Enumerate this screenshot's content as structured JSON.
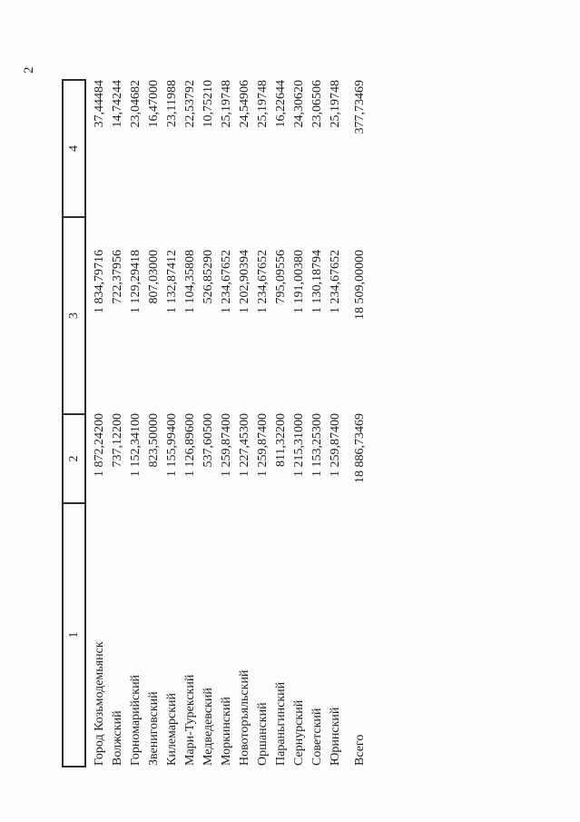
{
  "page": {
    "number": "2"
  },
  "table": {
    "columns": [
      "1",
      "2",
      "3",
      "4"
    ],
    "rows": [
      {
        "name": "Город Козьмодемьянск",
        "c2": "1 872,24200",
        "c3": "1 834,79716",
        "c4": "37,44484"
      },
      {
        "name": "Волжский",
        "c2": "737,12200",
        "c3": "722,37956",
        "c4": "14,74244"
      },
      {
        "name": "Горномарийский",
        "c2": "1 152,34100",
        "c3": "1 129,29418",
        "c4": "23,04682"
      },
      {
        "name": "Звениговский",
        "c2": "823,50000",
        "c3": "807,03000",
        "c4": "16,47000"
      },
      {
        "name": "Килемарский",
        "c2": "1 155,99400",
        "c3": "1 132,87412",
        "c4": "23,11988"
      },
      {
        "name": "Мари-Турекский",
        "c2": "1 126,89600",
        "c3": "1 104,35808",
        "c4": "22,53792"
      },
      {
        "name": "Медведевский",
        "c2": "537,60500",
        "c3": "526,85290",
        "c4": "10,75210"
      },
      {
        "name": "Моркинский",
        "c2": "1 259,87400",
        "c3": "1 234,67652",
        "c4": "25,19748"
      },
      {
        "name": "Новоторъяльский",
        "c2": "1 227,45300",
        "c3": "1 202,90394",
        "c4": "24,54906"
      },
      {
        "name": "Оршанский",
        "c2": "1 259,87400",
        "c3": "1 234,67652",
        "c4": "25,19748"
      },
      {
        "name": "Параньгинский",
        "c2": "811,32200",
        "c3": "795,09556",
        "c4": "16,22644"
      },
      {
        "name": "Сернурский",
        "c2": "1 215,31000",
        "c3": "1 191,00380",
        "c4": "24,30620"
      },
      {
        "name": "Советский",
        "c2": "1 153,25300",
        "c3": "1 130,18794",
        "c4": "23,06506"
      },
      {
        "name": "Юринский",
        "c2": "1 259,87400",
        "c3": "1 234,67652",
        "c4": "25,19748"
      }
    ],
    "total": {
      "name": "Всего",
      "c2": "18 886,73469",
      "c3": "18 509,00000",
      "c4": "377,73469"
    }
  }
}
